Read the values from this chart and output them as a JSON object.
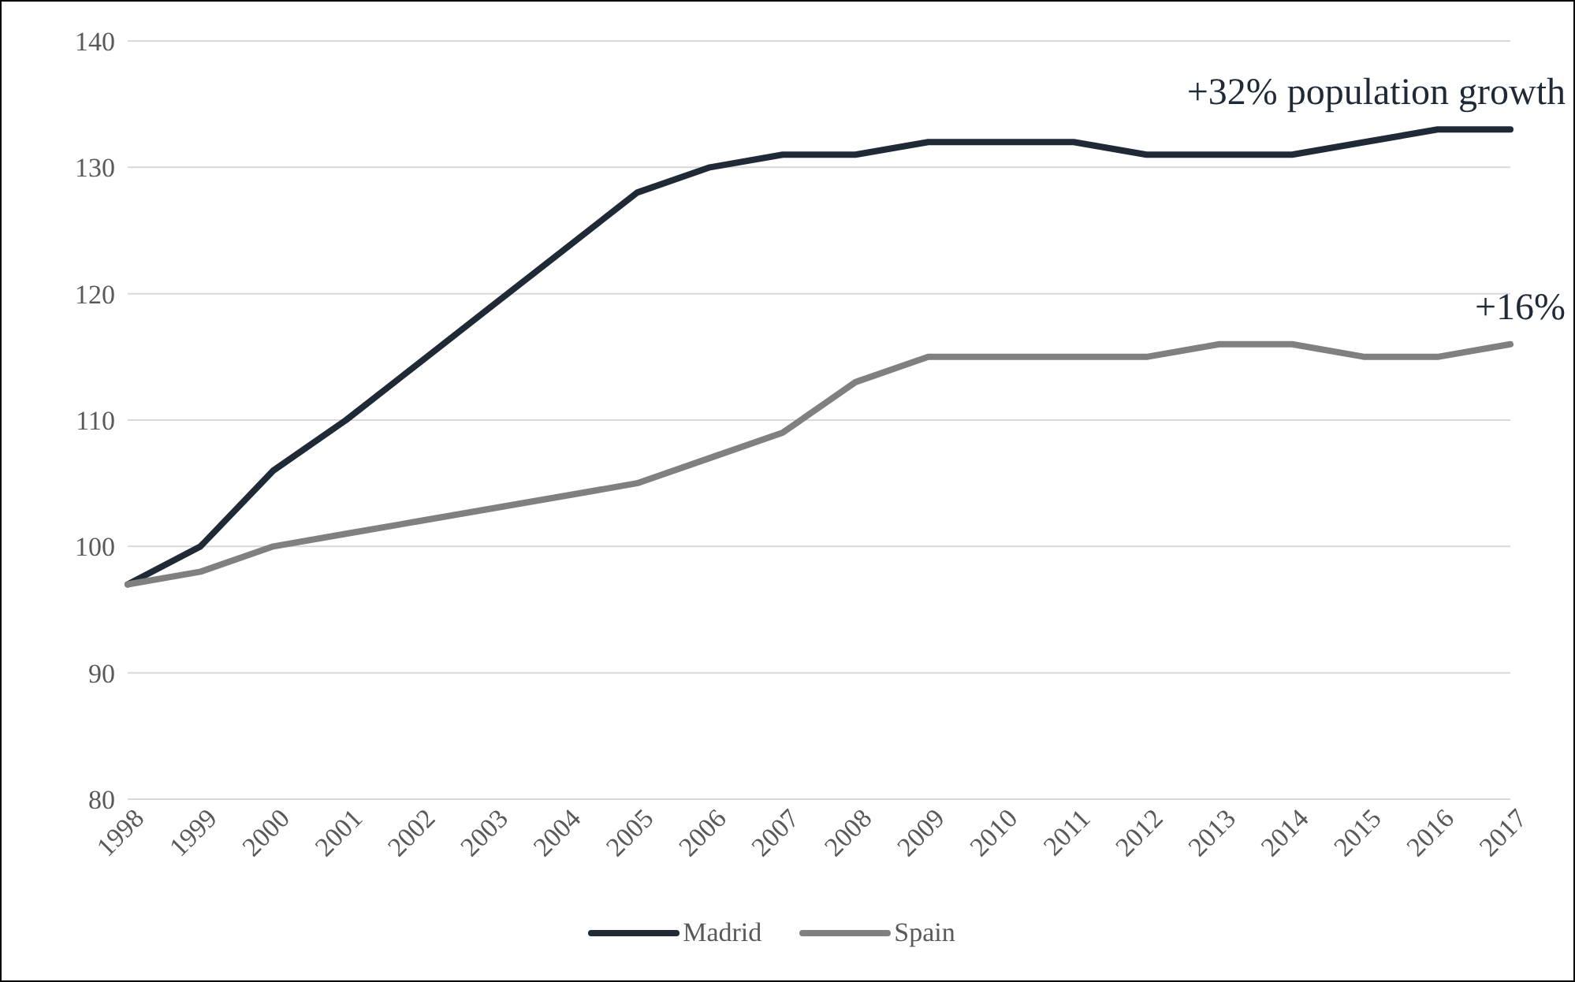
{
  "chart_data": {
    "type": "line",
    "categories": [
      "1998",
      "1999",
      "2000",
      "2001",
      "2002",
      "2003",
      "2004",
      "2005",
      "2006",
      "2007",
      "2008",
      "2009",
      "2010",
      "2011",
      "2012",
      "2013",
      "2014",
      "2015",
      "2016",
      "2017"
    ],
    "series": [
      {
        "name": "Madrid",
        "color": "#1f2a36",
        "values": [
          97,
          100,
          106,
          110,
          114.5,
          119,
          123.5,
          128,
          130,
          131,
          131,
          132,
          132,
          132,
          131,
          131,
          131,
          132,
          133,
          133
        ]
      },
      {
        "name": "Spain",
        "color": "#808080",
        "values": [
          97,
          98,
          100,
          101,
          102,
          103,
          104,
          105,
          107,
          109,
          113,
          115,
          115,
          115,
          115,
          116,
          116,
          115,
          115,
          116
        ]
      }
    ],
    "ylim": [
      80,
      140
    ],
    "yticks": [
      80,
      90,
      100,
      110,
      120,
      130,
      140
    ],
    "grid": "y",
    "legend": "bottom",
    "line_style": "solid",
    "annotations": [
      {
        "text": "+32% population growth",
        "x": "2017",
        "y": 133
      },
      {
        "text": "+16%",
        "x": "2017",
        "y": 116
      }
    ]
  }
}
